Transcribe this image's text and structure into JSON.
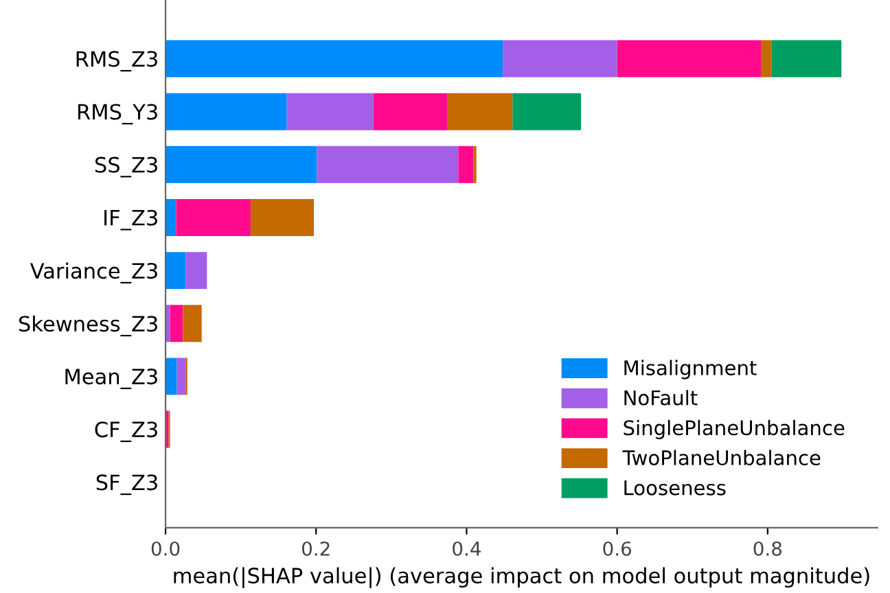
{
  "chart_data": {
    "type": "bar",
    "orientation": "horizontal",
    "stacked": true,
    "categories": [
      "RMS_Z3",
      "RMS_Y3",
      "SS_Z3",
      "IF_Z3",
      "Variance_Z3",
      "Skewness_Z3",
      "Mean_Z3",
      "CF_Z3",
      "SF_Z3"
    ],
    "series": [
      {
        "name": "Misalignment",
        "color": "#008bfb",
        "values": [
          0.448,
          0.161,
          0.201,
          0.014,
          0.027,
          null,
          0.015,
          null,
          0
        ]
      },
      {
        "name": "NoFault",
        "color": "#a45fe8",
        "values": [
          0.152,
          0.115,
          0.188,
          0,
          0.028,
          0.006,
          0.012,
          0,
          0
        ]
      },
      {
        "name": "SinglePlaneUnbalance",
        "color": "#ff0a8c",
        "values": [
          0.191,
          0.098,
          0.02,
          0.099,
          0,
          0.017,
          0,
          0.004,
          0
        ]
      },
      {
        "name": "TwoPlaneUnbalance",
        "color": "#c46a00",
        "values": [
          0.014,
          0.087,
          0.004,
          0.084,
          0,
          0.025,
          0.002,
          0.002,
          0
        ]
      },
      {
        "name": "Looseness",
        "color": "#009e62",
        "values": [
          0.093,
          0.091,
          0,
          0,
          0,
          0,
          0,
          0,
          0
        ]
      }
    ],
    "xlabel": "mean(|SHAP value|) (average impact on model output magnitude)",
    "xlim": [
      0,
      0.946
    ],
    "xticks": [
      {
        "value": 0,
        "label": "0.0"
      },
      {
        "value": 0.2,
        "label": "0.2"
      },
      {
        "value": 0.4,
        "label": "0.4"
      },
      {
        "value": 0.6,
        "label": "0.6"
      },
      {
        "value": 0.8,
        "label": "0.8"
      }
    ],
    "grid": false,
    "legend": "bottom right"
  }
}
